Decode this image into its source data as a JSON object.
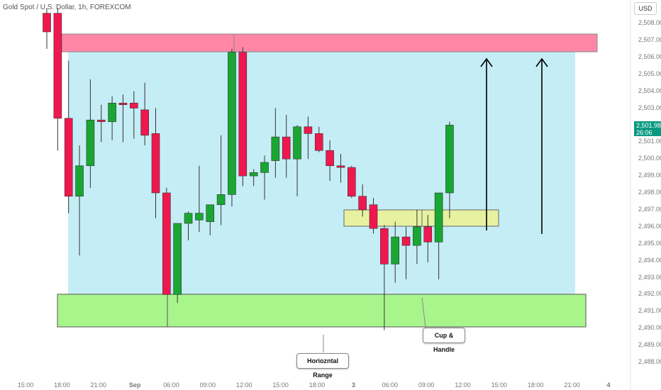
{
  "header": {
    "title": "Gold Spot / U.S. Dollar, 1h, FOREXCOM"
  },
  "axis": {
    "unit": "USD"
  },
  "price_badge": {
    "price": "2,501.98",
    "countdown": "26:06"
  },
  "annotations": {
    "horizontal_range": "Horiozntal Range",
    "cup_handle": "Cup & Handle"
  },
  "colors": {
    "up": "#1aa632",
    "down": "#f0174f",
    "range_fill": "#c5edf5",
    "resistance": "#ff86a5",
    "support": "#a8f58c",
    "handle_zone": "#e6f2a0"
  },
  "chart_data": {
    "type": "candlestick",
    "y_ticks": [
      "2,508.00",
      "2,507.00",
      "2,506.00",
      "2,505.00",
      "2,504.00",
      "2,503.00",
      "2,502.00",
      "2,501.00",
      "2,500.00",
      "2,499.00",
      "2,498.00",
      "2,497.00",
      "2,496.00",
      "2,495.00",
      "2,494.00",
      "2,493.00",
      "2,492.00",
      "2,491.00",
      "2,490.00",
      "2,489.00",
      "2,488.00"
    ],
    "x_ticks": [
      "15:00",
      "18:00",
      "21:00",
      "Sep",
      "06:00",
      "09:00",
      "12:00",
      "15:00",
      "18:00",
      "3",
      "06:00",
      "09:00",
      "12:00",
      "15:00",
      "18:00",
      "21:00",
      "4"
    ],
    "ylim": [
      2487.6,
      2508.8
    ],
    "candles": [
      {
        "o": 2508.6,
        "h": 2508.9,
        "l": 2506.5,
        "c": 2507.5
      },
      {
        "o": 2508.6,
        "h": 2508.9,
        "l": 2500.5,
        "c": 2502.4
      },
      {
        "o": 2502.4,
        "h": 2505.8,
        "l": 2496.8,
        "c": 2497.8
      },
      {
        "o": 2497.8,
        "h": 2500.8,
        "l": 2494.3,
        "c": 2499.6
      },
      {
        "o": 2499.6,
        "h": 2504.7,
        "l": 2498.3,
        "c": 2502.3
      },
      {
        "o": 2502.3,
        "h": 2503.2,
        "l": 2501.0,
        "c": 2502.2
      },
      {
        "o": 2502.2,
        "h": 2503.7,
        "l": 2501.1,
        "c": 2503.3
      },
      {
        "o": 2503.3,
        "h": 2503.8,
        "l": 2501.0,
        "c": 2503.2
      },
      {
        "o": 2503.3,
        "h": 2504.0,
        "l": 2501.2,
        "c": 2503.0
      },
      {
        "o": 2502.9,
        "h": 2504.5,
        "l": 2500.8,
        "c": 2501.4
      },
      {
        "o": 2501.5,
        "h": 2503.0,
        "l": 2496.5,
        "c": 2498.0
      },
      {
        "o": 2498.0,
        "h": 2498.3,
        "l": 2492.2,
        "c": 2492.0
      },
      {
        "o": 2492.0,
        "h": 2496.2,
        "l": 2491.5,
        "c": 2496.2
      },
      {
        "o": 2496.2,
        "h": 2496.9,
        "l": 2495.2,
        "c": 2496.8
      },
      {
        "o": 2496.4,
        "h": 2499.6,
        "l": 2495.7,
        "c": 2496.8
      },
      {
        "o": 2496.3,
        "h": 2497.3,
        "l": 2495.5,
        "c": 2497.3
      },
      {
        "o": 2497.3,
        "h": 2501.4,
        "l": 2496.1,
        "c": 2497.9
      },
      {
        "o": 2497.9,
        "h": 2506.5,
        "l": 2497.2,
        "c": 2506.3
      },
      {
        "o": 2506.3,
        "h": 2506.6,
        "l": 2498.4,
        "c": 2499.0
      },
      {
        "o": 2499.0,
        "h": 2499.4,
        "l": 2498.4,
        "c": 2499.2
      },
      {
        "o": 2499.2,
        "h": 2500.2,
        "l": 2497.6,
        "c": 2499.8
      },
      {
        "o": 2499.9,
        "h": 2503.0,
        "l": 2498.9,
        "c": 2501.3
      },
      {
        "o": 2501.3,
        "h": 2502.6,
        "l": 2498.9,
        "c": 2500.0
      },
      {
        "o": 2500.0,
        "h": 2502.0,
        "l": 2497.8,
        "c": 2501.9
      },
      {
        "o": 2501.9,
        "h": 2502.5,
        "l": 2500.0,
        "c": 2501.5
      },
      {
        "o": 2501.5,
        "h": 2501.9,
        "l": 2500.4,
        "c": 2500.5
      },
      {
        "o": 2500.5,
        "h": 2501.1,
        "l": 2498.7,
        "c": 2499.6
      },
      {
        "o": 2499.6,
        "h": 2500.3,
        "l": 2498.6,
        "c": 2499.5
      },
      {
        "o": 2499.5,
        "h": 2499.6,
        "l": 2497.7,
        "c": 2497.8
      },
      {
        "o": 2497.8,
        "h": 2498.5,
        "l": 2496.6,
        "c": 2497.0
      },
      {
        "o": 2497.3,
        "h": 2497.7,
        "l": 2495.6,
        "c": 2495.9
      },
      {
        "o": 2495.9,
        "h": 2496.1,
        "l": 2489.9,
        "c": 2493.8
      },
      {
        "o": 2493.8,
        "h": 2496.3,
        "l": 2492.7,
        "c": 2495.4
      },
      {
        "o": 2495.4,
        "h": 2496.0,
        "l": 2492.9,
        "c": 2494.9
      },
      {
        "o": 2494.9,
        "h": 2497.0,
        "l": 2493.8,
        "c": 2496.0
      },
      {
        "o": 2496.0,
        "h": 2496.7,
        "l": 2493.9,
        "c": 2495.1
      },
      {
        "o": 2495.1,
        "h": 2498.0,
        "l": 2492.9,
        "c": 2498.0
      },
      {
        "o": 2498.0,
        "h": 2502.2,
        "l": 2496.5,
        "c": 2502.0
      }
    ]
  }
}
